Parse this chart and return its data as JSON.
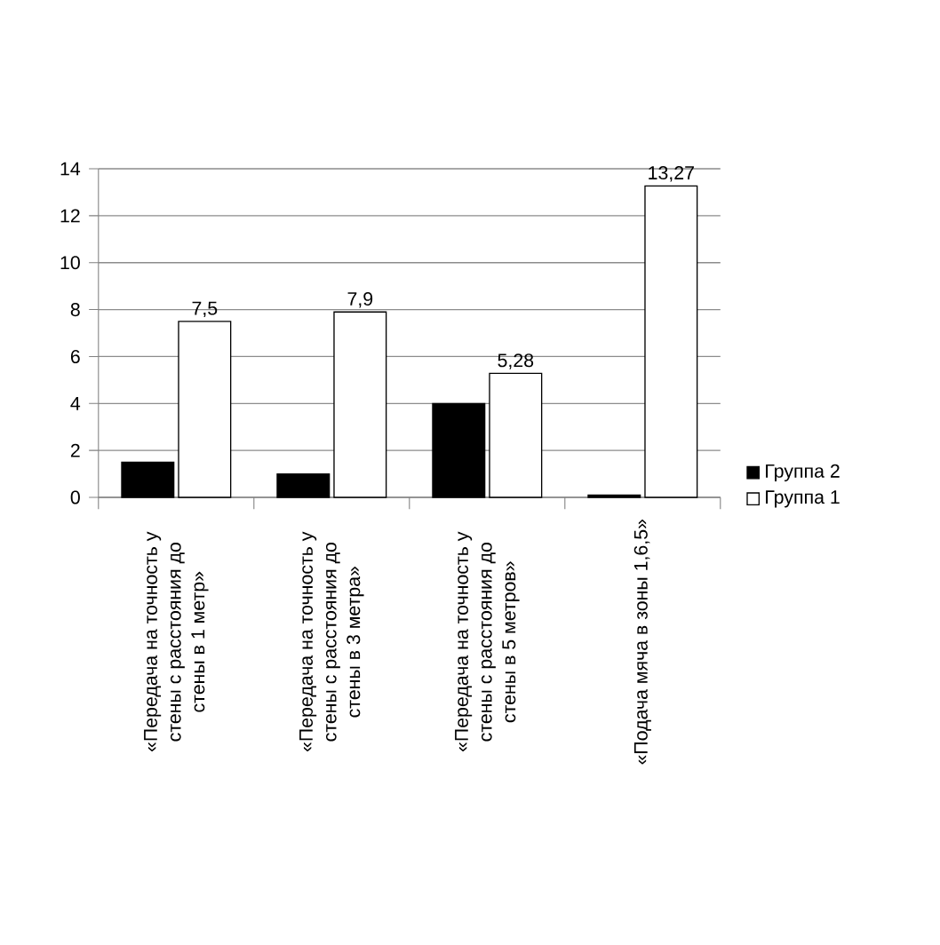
{
  "chart_data": {
    "type": "bar",
    "categories": [
      "«Передача на точность у стены с расстояния до стены в 1 метр»",
      "«Передача на точность у стены с расстояния до стены в 3 метра»",
      "«Передача на точность у стены с расстояния до стены в 5 метров»",
      "«Подача мяча в зоны 1,6,5»"
    ],
    "series": [
      {
        "name": "Группа 2",
        "color": "#000000",
        "values": [
          1.5,
          1,
          4,
          0.1
        ]
      },
      {
        "name": "Группа 1",
        "color": "#ffffff",
        "values": [
          7.5,
          7.9,
          5.28,
          13.27
        ],
        "value_labels": [
          "7,5",
          "7,9",
          "5,28",
          "13,27"
        ]
      }
    ],
    "ylim": [
      0,
      14
    ],
    "yticks": [
      0,
      2,
      4,
      6,
      8,
      10,
      12,
      14
    ],
    "grid": "y",
    "legend": "right"
  }
}
